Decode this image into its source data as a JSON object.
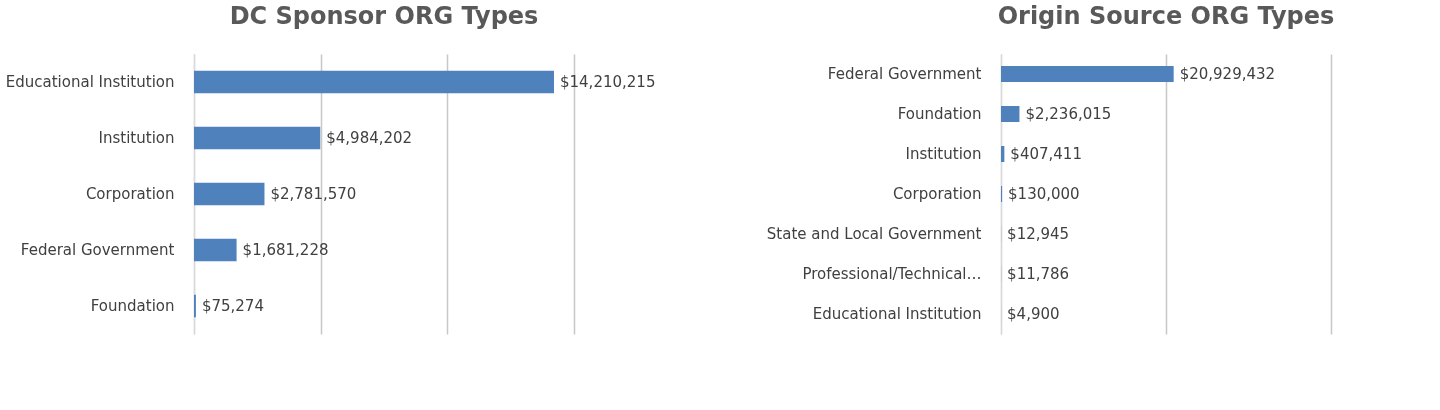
{
  "chart_data": [
    {
      "type": "bar",
      "orientation": "horizontal",
      "title": "DC Sponsor ORG Types",
      "categories": [
        "Educational Institution",
        "Institution",
        "Corporation",
        "Federal Government",
        "Foundation"
      ],
      "values": [
        14210215,
        4984202,
        2781570,
        1681228,
        75274
      ],
      "color": "#4f81bd",
      "value_labels": [
        "$14,210,215",
        "$4,984,202",
        "$2,781,570",
        "$1,681,228",
        "$75,274"
      ],
      "xlim": [
        0,
        15000000
      ],
      "xticks": [
        {
          "value": 0,
          "label": null
        },
        {
          "value": 5000000,
          "label": null
        },
        {
          "value": 10000000,
          "label": null
        },
        {
          "value": 15000000,
          "label": null
        }
      ],
      "grid": "x",
      "tick_labels": "y"
    },
    {
      "type": "bar",
      "orientation": "horizontal",
      "title": "Origin Source ORG Types",
      "categories": [
        "Federal Government",
        "Foundation",
        "Institution",
        "Corporation",
        "State and Local Government",
        "Professional/Technical…",
        "Educational Institution"
      ],
      "values": [
        20929432,
        2236015,
        407411,
        130000,
        12945,
        11786,
        4900
      ],
      "color": "#4f81bd",
      "value_labels": [
        "$20,929,432",
        "$2,236,015",
        "$407,411",
        "$130,000",
        "$12,945",
        "$11,786",
        "$4,900"
      ],
      "xlim": [
        0,
        40000000
      ],
      "xticks": [
        {
          "value": 0,
          "label": null
        },
        {
          "value": 20000000,
          "label": null
        },
        {
          "value": 40000000,
          "label": null
        }
      ],
      "grid": "x",
      "tick_labels": "y"
    }
  ]
}
